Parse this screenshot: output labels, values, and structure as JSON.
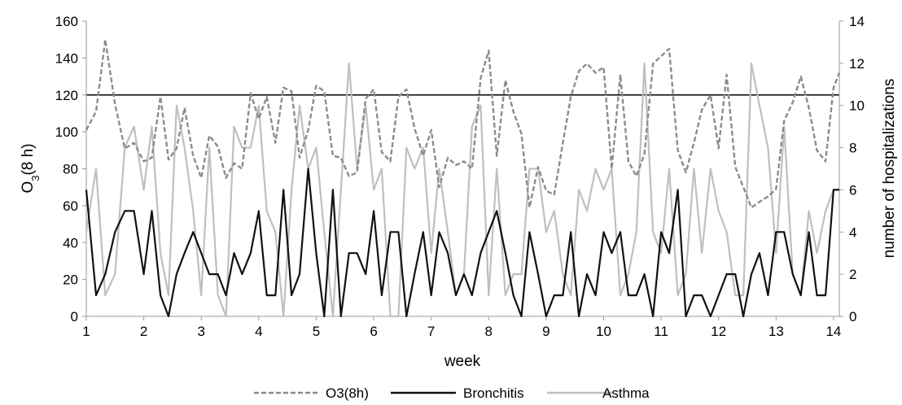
{
  "chart_data": {
    "type": "line",
    "xlabel": "week",
    "ylabel_main": "O",
    "ylabel_sub": "3",
    "ylabel_suffix": "(8 h)",
    "y2label": "number of hospitalizations",
    "xlim": [
      1,
      14.1
    ],
    "ylim": [
      0,
      160
    ],
    "y2lim": [
      0,
      14
    ],
    "xticks": [
      1,
      2,
      3,
      4,
      5,
      6,
      7,
      8,
      9,
      10,
      11,
      12,
      13,
      14
    ],
    "yticks": [
      0,
      20,
      40,
      60,
      80,
      100,
      120,
      140,
      160
    ],
    "y2ticks": [
      0,
      2,
      4,
      6,
      8,
      10,
      12,
      14
    ],
    "threshold": 120,
    "series": [
      {
        "name": "O3(8h)",
        "axis": "left",
        "color": "#8c8c8c",
        "dash": true,
        "x": [
          1.0,
          1.17,
          1.33,
          1.5,
          1.67,
          1.83,
          2.0,
          2.14,
          2.29,
          2.43,
          2.57,
          2.71,
          2.86,
          3.0,
          3.14,
          3.29,
          3.43,
          3.57,
          3.71,
          3.86,
          4.0,
          4.14,
          4.29,
          4.43,
          4.57,
          4.71,
          4.86,
          5.0,
          5.14,
          5.29,
          5.43,
          5.57,
          5.71,
          5.86,
          6.0,
          6.14,
          6.29,
          6.43,
          6.57,
          6.71,
          6.86,
          7.0,
          7.14,
          7.29,
          7.43,
          7.57,
          7.71,
          7.86,
          8.0,
          8.14,
          8.29,
          8.43,
          8.57,
          8.71,
          8.86,
          9.0,
          9.14,
          9.29,
          9.43,
          9.57,
          9.71,
          9.86,
          10.0,
          10.14,
          10.29,
          10.43,
          10.57,
          10.71,
          10.86,
          11.0,
          11.14,
          11.29,
          11.43,
          11.57,
          11.71,
          11.86,
          12.0,
          12.14,
          12.29,
          12.43,
          12.57,
          12.71,
          12.86,
          13.0,
          13.14,
          13.29,
          13.43,
          13.57,
          13.71,
          13.86,
          14.0,
          14.1
        ],
        "y": [
          101,
          111,
          150,
          115,
          91,
          94,
          84,
          86,
          119,
          85,
          91,
          113,
          87,
          75,
          98,
          92,
          75,
          83,
          80,
          121,
          107,
          119,
          94,
          124,
          122,
          86,
          101,
          125,
          122,
          87,
          86,
          76,
          78,
          118,
          123,
          89,
          84,
          119,
          123,
          102,
          87,
          101,
          70,
          86,
          82,
          84,
          80,
          129,
          144,
          87,
          128,
          111,
          99,
          59,
          81,
          68,
          66,
          94,
          119,
          133,
          137,
          132,
          135,
          80,
          131,
          84,
          76,
          88,
          137,
          141,
          145,
          90,
          78,
          94,
          112,
          120,
          91,
          131,
          81,
          70,
          59,
          62,
          65,
          69,
          106,
          116,
          130,
          113,
          90,
          84,
          124,
          132
        ]
      },
      {
        "name": "Bronchitis",
        "axis": "right",
        "color": "#111111",
        "dash": false,
        "x": [
          1.0,
          1.17,
          1.33,
          1.5,
          1.67,
          1.83,
          2.0,
          2.14,
          2.29,
          2.43,
          2.57,
          2.71,
          2.86,
          3.0,
          3.14,
          3.29,
          3.43,
          3.57,
          3.71,
          3.86,
          4.0,
          4.14,
          4.29,
          4.43,
          4.57,
          4.71,
          4.86,
          5.0,
          5.14,
          5.29,
          5.43,
          5.57,
          5.71,
          5.86,
          6.0,
          6.14,
          6.29,
          6.43,
          6.57,
          6.71,
          6.86,
          7.0,
          7.14,
          7.29,
          7.43,
          7.57,
          7.71,
          7.86,
          8.0,
          8.14,
          8.29,
          8.43,
          8.57,
          8.71,
          8.86,
          9.0,
          9.14,
          9.29,
          9.43,
          9.57,
          9.71,
          9.86,
          10.0,
          10.14,
          10.29,
          10.43,
          10.57,
          10.71,
          10.86,
          11.0,
          11.14,
          11.29,
          11.43,
          11.57,
          11.71,
          11.86,
          12.0,
          12.14,
          12.29,
          12.43,
          12.57,
          12.71,
          12.86,
          13.0,
          13.14,
          13.29,
          13.43,
          13.57,
          13.71,
          13.86,
          14.0,
          14.1
        ],
        "y": [
          6,
          1,
          2,
          4,
          5,
          5,
          2,
          5,
          1,
          0,
          2,
          3,
          4,
          3,
          2,
          2,
          1,
          3,
          2,
          3,
          5,
          1,
          1,
          6,
          1,
          2,
          7,
          3,
          0,
          6,
          0,
          3,
          3,
          2,
          5,
          1,
          4,
          4,
          0,
          2,
          4,
          1,
          4,
          3,
          1,
          2,
          1,
          3,
          4,
          5,
          3,
          1,
          0,
          4,
          2,
          0,
          1,
          1,
          4,
          0,
          2,
          1,
          4,
          3,
          4,
          1,
          1,
          2,
          0,
          4,
          3,
          6,
          0,
          1,
          1,
          0,
          1,
          2,
          2,
          0,
          2,
          3,
          1,
          4,
          4,
          2,
          1,
          4,
          1,
          1,
          6,
          6
        ]
      },
      {
        "name": "Asthma",
        "axis": "right",
        "color": "#bfbfbf",
        "dash": false,
        "x": [
          1.0,
          1.17,
          1.33,
          1.5,
          1.67,
          1.83,
          2.0,
          2.14,
          2.29,
          2.43,
          2.57,
          2.71,
          2.86,
          3.0,
          3.14,
          3.29,
          3.43,
          3.57,
          3.71,
          3.86,
          4.0,
          4.14,
          4.29,
          4.43,
          4.57,
          4.71,
          4.86,
          5.0,
          5.14,
          5.29,
          5.43,
          5.57,
          5.71,
          5.86,
          6.0,
          6.14,
          6.29,
          6.43,
          6.57,
          6.71,
          6.86,
          7.0,
          7.14,
          7.29,
          7.43,
          7.57,
          7.71,
          7.86,
          8.0,
          8.14,
          8.29,
          8.43,
          8.57,
          8.71,
          8.86,
          9.0,
          9.14,
          9.29,
          9.43,
          9.57,
          9.71,
          9.86,
          10.0,
          10.14,
          10.29,
          10.43,
          10.57,
          10.71,
          10.86,
          11.0,
          11.14,
          11.29,
          11.43,
          11.57,
          11.71,
          11.86,
          12.0,
          12.14,
          12.29,
          12.43,
          12.57,
          12.71,
          12.86,
          13.0,
          13.14,
          13.29,
          13.43,
          13.57,
          13.71,
          13.86,
          14.0,
          14.1
        ],
        "y": [
          4,
          7,
          1,
          2,
          8,
          9,
          6,
          9,
          3,
          1,
          10,
          8,
          5,
          1,
          8,
          1,
          0,
          9,
          8,
          8,
          10,
          5,
          4,
          0,
          6,
          10,
          7,
          8,
          4,
          0,
          6,
          12,
          7,
          10,
          6,
          7,
          0,
          0,
          8,
          7,
          8,
          3,
          7,
          4,
          1,
          2,
          9,
          10,
          1,
          7,
          1,
          2,
          2,
          7,
          7,
          4,
          5,
          2,
          1,
          6,
          5,
          7,
          6,
          7,
          1,
          2,
          4,
          12,
          4,
          3,
          7,
          1,
          2,
          7,
          3,
          7,
          5,
          4,
          1,
          1,
          12,
          10,
          8,
          3,
          9,
          2,
          1,
          5,
          3,
          5,
          6,
          6
        ]
      }
    ]
  }
}
